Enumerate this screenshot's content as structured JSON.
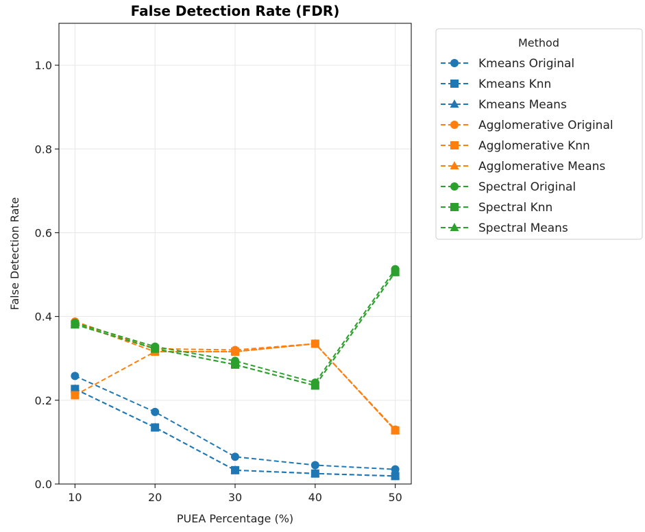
{
  "chart_data": {
    "type": "line",
    "title": "False Detection Rate (FDR)",
    "xlabel": "PUEA Percentage (%)",
    "ylabel": "False Detection Rate",
    "x": [
      10,
      20,
      30,
      40,
      50
    ],
    "xticks": [
      "10",
      "20",
      "30",
      "40",
      "50"
    ],
    "yticks": [
      "0.0",
      "0.2",
      "0.4",
      "0.6",
      "0.8",
      "1.0"
    ],
    "xlim": [
      8,
      52
    ],
    "ylim": [
      0,
      1.1
    ],
    "grid": true,
    "legend": {
      "title": "Method",
      "placement": "outside-right"
    },
    "series": [
      {
        "name": "Kmeans Original",
        "color": "#1f77b4",
        "marker": "circle",
        "values": [
          0.258,
          0.172,
          0.065,
          0.045,
          0.035
        ]
      },
      {
        "name": "Kmeans Knn",
        "color": "#1f77b4",
        "marker": "square",
        "values": [
          0.227,
          0.135,
          0.033,
          0.025,
          0.019
        ]
      },
      {
        "name": "Kmeans Means",
        "color": "#1f77b4",
        "marker": "triangle",
        "values": [
          0.227,
          0.135,
          0.033,
          0.025,
          0.019
        ]
      },
      {
        "name": "Agglomerative Original",
        "color": "#ff7f0e",
        "marker": "circle",
        "values": [
          0.388,
          0.323,
          0.32,
          0.335,
          0.13
        ]
      },
      {
        "name": "Agglomerative Knn",
        "color": "#ff7f0e",
        "marker": "square",
        "values": [
          0.212,
          0.316,
          0.316,
          0.335,
          0.128
        ]
      },
      {
        "name": "Agglomerative Means",
        "color": "#ff7f0e",
        "marker": "triangle",
        "values": [
          0.385,
          0.316,
          0.316,
          0.335,
          0.128
        ]
      },
      {
        "name": "Spectral Original",
        "color": "#2ca02c",
        "marker": "circle",
        "values": [
          0.385,
          0.328,
          0.294,
          0.242,
          0.513
        ]
      },
      {
        "name": "Spectral Knn",
        "color": "#2ca02c",
        "marker": "square",
        "values": [
          0.381,
          0.323,
          0.285,
          0.235,
          0.506
        ]
      },
      {
        "name": "Spectral Means",
        "color": "#2ca02c",
        "marker": "triangle",
        "values": [
          0.381,
          0.323,
          0.285,
          0.235,
          0.506
        ]
      }
    ]
  }
}
